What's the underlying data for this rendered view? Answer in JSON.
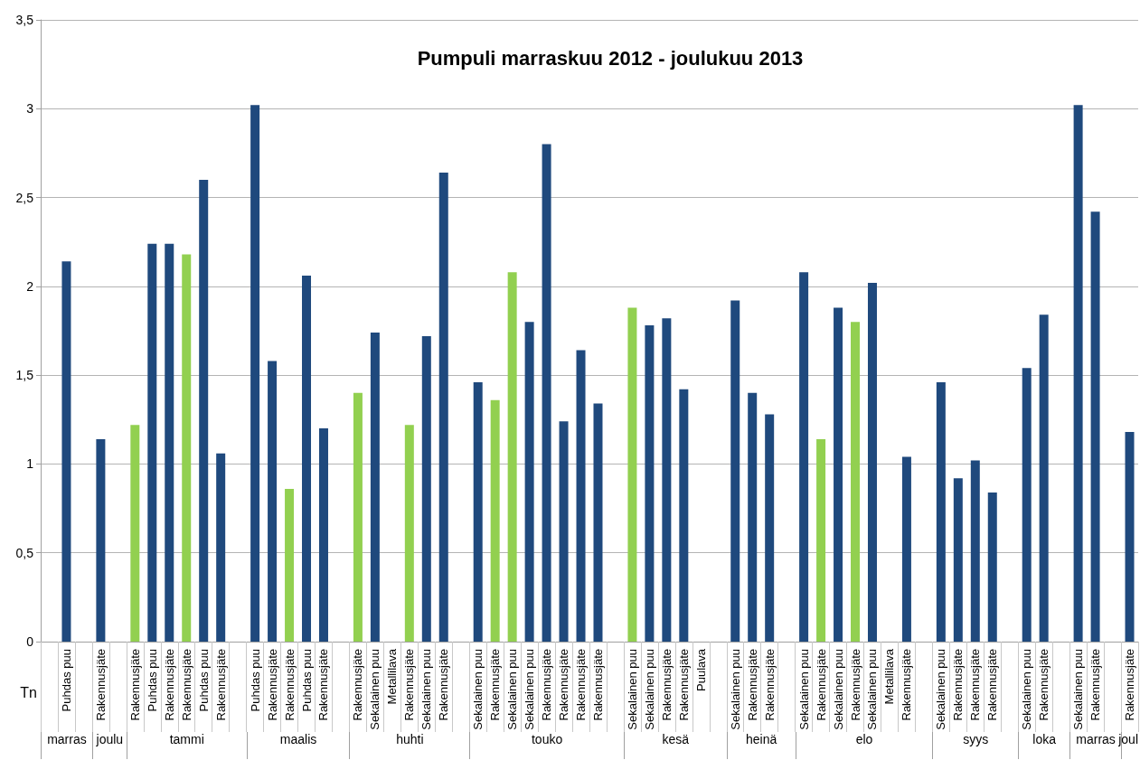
{
  "chart_data": {
    "type": "bar",
    "title": "Pumpuli marraskuu 2012 - joulukuu 2013",
    "ylabel": "Tn",
    "categories": [
      null,
      "Puhdas puu",
      null,
      "Rakennusjäte",
      null,
      "Rakennusjäte",
      "Puhdas puu",
      "Rakennusjäte",
      "Rakennusjäte",
      "Puhdas puu",
      "Rakennusjäte",
      null,
      "Puhdas puu",
      "Rakennusjäte",
      "Rakennusjäte",
      "Puhdas puu",
      "Rakennusjäte",
      null,
      "Rakennusjäte",
      "Sekalainen puu",
      "Metallilava",
      "Rakennusjäte",
      "Sekalainen puu",
      "Rakennusjäte",
      null,
      "Sekalainen puu",
      "Rakennusjäte",
      "Sekalainen puu",
      "Sekalainen puu",
      "Rakennusjäte",
      "Rakennusjäte",
      "Rakennusjäte",
      "Rakennusjäte",
      null,
      "Sekalainen puu",
      "Sekalainen puu",
      "Rakennusjäte",
      "Rakennusjäte",
      "Puulava",
      null,
      "Sekalainen puu",
      "Rakennusjäte",
      "Rakennusjäte",
      null,
      "Sekalainen puu",
      "Rakennusjäte",
      "Sekalainen puu",
      "Rakennusjäte",
      "Sekalainen puu",
      "Metallilava",
      "Rakennusjäte",
      null,
      "Sekalainen puu",
      "Rakennusjäte",
      "Rakennusjäte",
      "Rakennusjäte",
      null,
      "Sekalainen puu",
      "Rakennusjäte",
      null,
      "Sekalainen puu",
      "Rakennusjäte",
      null,
      "Rakennusjäte"
    ],
    "values": [
      null,
      2.14,
      null,
      1.14,
      null,
      1.22,
      2.24,
      2.24,
      2.18,
      2.6,
      1.06,
      null,
      3.02,
      1.58,
      0.86,
      2.06,
      1.2,
      null,
      1.4,
      1.74,
      0,
      1.22,
      1.72,
      2.64,
      null,
      1.46,
      1.36,
      2.08,
      1.8,
      2.8,
      1.24,
      1.64,
      1.34,
      null,
      1.88,
      1.78,
      1.82,
      1.42,
      0,
      null,
      1.92,
      1.4,
      1.28,
      null,
      2.08,
      1.14,
      1.88,
      1.8,
      2.02,
      0,
      1.04,
      null,
      1.46,
      0.92,
      1.02,
      0.84,
      null,
      1.54,
      1.84,
      null,
      3.02,
      2.42,
      null,
      1.18
    ],
    "colors": [
      null,
      "#1f497d",
      null,
      "#1f497d",
      null,
      "#92d050",
      "#1f497d",
      "#1f497d",
      "#92d050",
      "#1f497d",
      "#1f497d",
      null,
      "#1f497d",
      "#1f497d",
      "#92d050",
      "#1f497d",
      "#1f497d",
      null,
      "#92d050",
      "#1f497d",
      "#1f497d",
      "#92d050",
      "#1f497d",
      "#1f497d",
      null,
      "#1f497d",
      "#92d050",
      "#92d050",
      "#1f497d",
      "#1f497d",
      "#1f497d",
      "#1f497d",
      "#1f497d",
      null,
      "#92d050",
      "#1f497d",
      "#1f497d",
      "#1f497d",
      "#1f497d",
      null,
      "#1f497d",
      "#1f497d",
      "#1f497d",
      null,
      "#1f497d",
      "#92d050",
      "#1f497d",
      "#92d050",
      "#1f497d",
      "#1f497d",
      "#1f497d",
      null,
      "#1f497d",
      "#1f497d",
      "#1f497d",
      "#1f497d",
      null,
      "#1f497d",
      "#1f497d",
      null,
      "#1f497d",
      "#1f497d",
      null,
      "#1f497d"
    ],
    "ylim": [
      0,
      3.5
    ],
    "yticks": [
      0,
      {
        "value": 0.5,
        "label": "0,5"
      },
      1,
      {
        "value": 1.5,
        "label": "1,5"
      },
      2,
      {
        "value": 2.5,
        "label": "2,5"
      },
      3,
      {
        "value": 3.5,
        "label": "3,5"
      }
    ],
    "annotations": [
      "marras",
      "joulu",
      "tammi",
      "maalis",
      "huhti",
      "touko",
      "kesä",
      "heinä",
      "elo",
      "syys",
      "loka",
      "marras",
      "joul"
    ],
    "grid": "y"
  }
}
